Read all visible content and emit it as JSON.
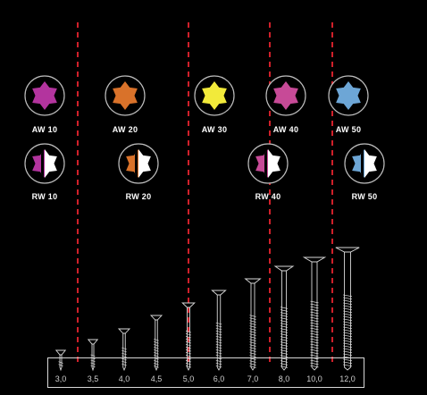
{
  "colors": {
    "background": "#000000",
    "divider": "#d0202a",
    "AW": {
      "purple": "#b3349e",
      "orange": "#d9722a",
      "yellow": "#f2ea3a",
      "pink": "#c74a97",
      "blue": "#6da6d6"
    }
  },
  "aw_bits": [
    {
      "label": "AW 10",
      "color": "#b3349e",
      "icon": "hexalobular-drive-icon"
    },
    {
      "label": "AW 20",
      "color": "#d9722a",
      "icon": "hexalobular-drive-icon"
    },
    {
      "label": "AW 30",
      "color": "#f2ea3a",
      "icon": "hexalobular-drive-icon"
    },
    {
      "label": "AW 40",
      "color": "#c74a97",
      "icon": "hexalobular-drive-icon"
    },
    {
      "label": "AW 50",
      "color": "#6da6d6",
      "icon": "hexalobular-drive-icon"
    }
  ],
  "rw_bits": [
    {
      "label": "RW 10",
      "color": "#b3349e",
      "icon": "split-hexalobular-drive-icon"
    },
    {
      "label": "RW 20",
      "color": "#d9722a",
      "icon": "split-hexalobular-drive-icon"
    },
    {
      "label": "RW 40",
      "color": "#c74a97",
      "icon": "split-hexalobular-drive-icon"
    },
    {
      "label": "RW 50",
      "color": "#6da6d6",
      "icon": "split-hexalobular-drive-icon"
    }
  ],
  "screw_sizes": [
    "3,0",
    "3,5",
    "4,0",
    "4,5",
    "5,0",
    "6,0",
    "7,0",
    "8,0",
    "10,0",
    "12,0"
  ]
}
